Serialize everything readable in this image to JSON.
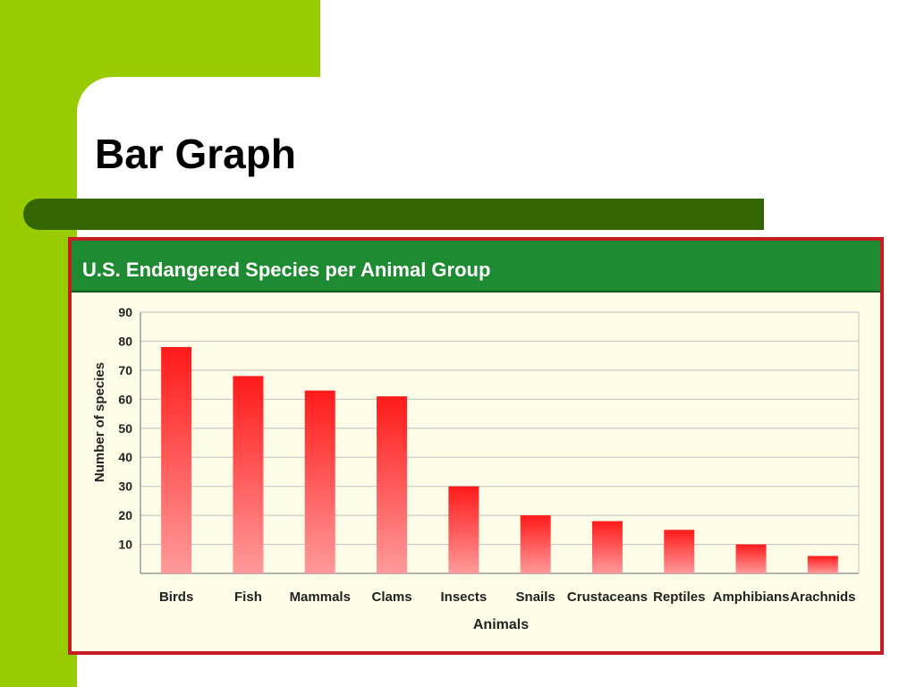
{
  "slide": {
    "title": "Bar Graph"
  },
  "colors": {
    "lime": "#99cc00",
    "dark_green": "#336600",
    "header_green": "#1e8a32",
    "frame_red": "#c41e24",
    "plot_bg": "#fdfde8",
    "bar_top": "#ff1a1a",
    "bar_bottom": "#ff9a9a"
  },
  "chart_data": {
    "type": "bar",
    "title": "U.S. Endangered Species per Animal Group",
    "xlabel": "Animals",
    "ylabel": "Number of species",
    "categories": [
      "Birds",
      "Fish",
      "Mammals",
      "Clams",
      "Insects",
      "Snails",
      "Crustaceans",
      "Reptiles",
      "Amphibians",
      "Arachnids"
    ],
    "values": [
      78,
      68,
      63,
      61,
      30,
      20,
      18,
      15,
      10,
      6
    ],
    "ylim": [
      0,
      90
    ],
    "yticks": [
      10,
      20,
      30,
      40,
      50,
      60,
      70,
      80,
      90
    ],
    "grid": true,
    "legend": "none"
  }
}
